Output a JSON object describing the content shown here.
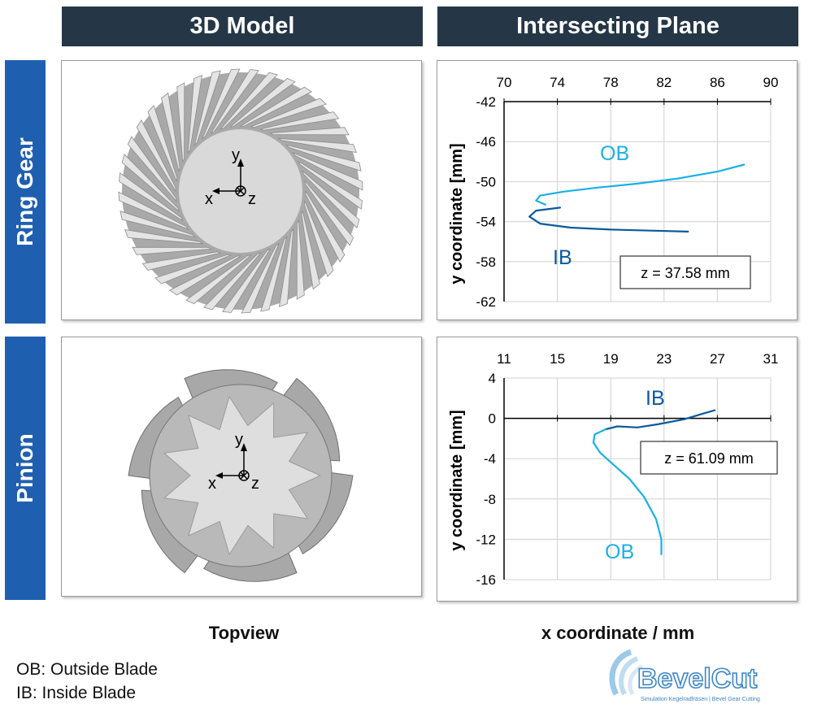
{
  "headers": {
    "model": "3D Model",
    "plane": "Intersecting Plane"
  },
  "rows": {
    "ring": "Ring Gear",
    "pinion": "Pinion"
  },
  "axes_triad": {
    "x": "x",
    "y": "y",
    "z": "z"
  },
  "captions": {
    "left": "Topview",
    "right": "x coordinate / mm"
  },
  "legend": {
    "ob": "OB: Outside Blade",
    "ib": "IB: Inside Blade"
  },
  "logo": {
    "name": "BevelCut",
    "tagline": "Simulation Kegelradfräsen | Bevel Gear Cutting"
  },
  "colors": {
    "header": "#253746",
    "row_band": "#1f5fb0",
    "outside_blade": "#1ab0e6",
    "inside_blade": "#0a5a9c",
    "gear": "#b8b8b8",
    "gear_face": "#d6d6d6"
  },
  "chart_data": [
    {
      "type": "line",
      "panel": "ring",
      "xlabel": "",
      "ylabel": "y coordinate [mm]",
      "xlim": [
        70,
        90
      ],
      "ylim": [
        -62,
        -42
      ],
      "xticks": [
        70,
        74,
        78,
        82,
        86,
        90
      ],
      "yticks": [
        -42,
        -46,
        -50,
        -54,
        -58,
        -62
      ],
      "x_axis_position": "top",
      "grid": true,
      "annotation": "z = 37.58 mm",
      "series": [
        {
          "name": "OB",
          "color": "#1ab0e6",
          "points": [
            [
              73.1,
              -52.3
            ],
            [
              72.4,
              -51.9
            ],
            [
              72.7,
              -51.4
            ],
            [
              74.5,
              -51.0
            ],
            [
              77.0,
              -50.6
            ],
            [
              80.0,
              -50.2
            ],
            [
              83.0,
              -49.7
            ],
            [
              86.0,
              -49.0
            ],
            [
              88.0,
              -48.3
            ]
          ]
        },
        {
          "name": "IB",
          "color": "#0a5a9c",
          "points": [
            [
              74.2,
              -52.6
            ],
            [
              72.4,
              -52.9
            ],
            [
              71.9,
              -53.5
            ],
            [
              72.7,
              -54.2
            ],
            [
              75.0,
              -54.6
            ],
            [
              78.0,
              -54.8
            ],
            [
              81.0,
              -54.9
            ],
            [
              83.8,
              -55.0
            ]
          ]
        }
      ]
    },
    {
      "type": "line",
      "panel": "pinion",
      "xlabel": "",
      "ylabel": "y coordinate [mm]",
      "xlim": [
        11,
        31
      ],
      "ylim": [
        -16,
        4
      ],
      "xticks": [
        11,
        15,
        19,
        23,
        27,
        31
      ],
      "yticks": [
        4,
        0,
        -4,
        -8,
        -12,
        -16
      ],
      "x_axis_position": "top",
      "grid": true,
      "annotation": "z = 61.09 mm",
      "series": [
        {
          "name": "IB",
          "color": "#0a5a9c",
          "points": [
            [
              18.6,
              -1.1
            ],
            [
              19.5,
              -0.8
            ],
            [
              21.0,
              -0.9
            ],
            [
              22.5,
              -0.6
            ],
            [
              24.5,
              -0.1
            ],
            [
              26.0,
              0.5
            ],
            [
              26.8,
              0.8
            ]
          ]
        },
        {
          "name": "OB",
          "color": "#1ab0e6",
          "points": [
            [
              18.6,
              -1.1
            ],
            [
              17.8,
              -1.6
            ],
            [
              17.7,
              -2.4
            ],
            [
              18.2,
              -3.4
            ],
            [
              19.2,
              -4.6
            ],
            [
              20.4,
              -6.0
            ],
            [
              21.5,
              -7.8
            ],
            [
              22.4,
              -10.0
            ],
            [
              22.8,
              -12.0
            ],
            [
              22.8,
              -13.5
            ]
          ]
        }
      ]
    }
  ]
}
